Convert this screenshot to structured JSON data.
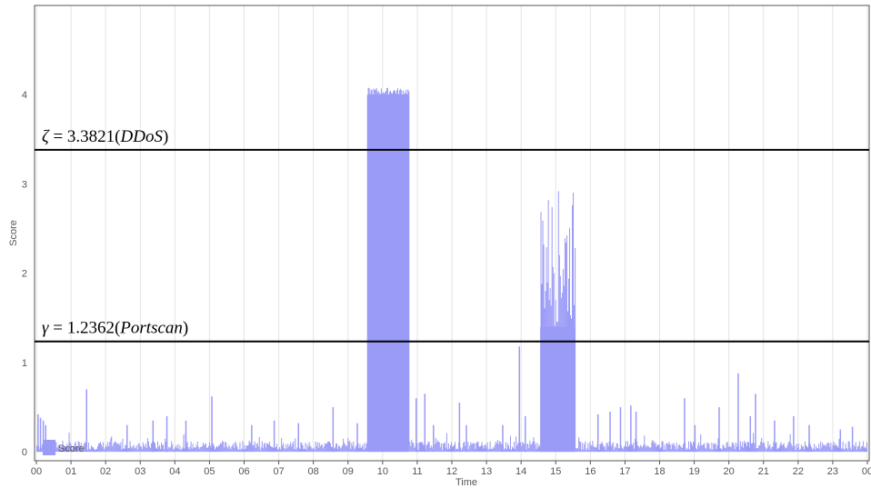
{
  "chart_data": {
    "type": "bar",
    "title": "",
    "xlabel": "Time",
    "ylabel": "Score",
    "xlim": [
      0,
      24
    ],
    "ylim": [
      -0.1,
      5
    ],
    "x_ticks": [
      "00",
      "01",
      "02",
      "03",
      "04",
      "05",
      "06",
      "07",
      "08",
      "09",
      "10",
      "11",
      "12",
      "13",
      "14",
      "15",
      "16",
      "17",
      "18",
      "19",
      "20",
      "21",
      "22",
      "23",
      "00"
    ],
    "y_ticks": [
      0,
      1,
      2,
      3,
      4
    ],
    "grid": "vertical",
    "series": [
      {
        "name": "Score",
        "color": "#9a9af7",
        "baseline_range": [
          0.02,
          0.12
        ],
        "segments": [
          {
            "start": 9.55,
            "end": 10.75,
            "min": 4.0,
            "max": 4.08
          },
          {
            "start": 14.55,
            "end": 15.55,
            "min": 1.4,
            "max": 2.95
          }
        ],
        "spikes": [
          {
            "x": 0.03,
            "value": 0.42
          },
          {
            "x": 0.1,
            "value": 0.38
          },
          {
            "x": 0.18,
            "value": 0.35
          },
          {
            "x": 0.25,
            "value": 0.3
          },
          {
            "x": 1.43,
            "value": 0.7
          },
          {
            "x": 2.6,
            "value": 0.3
          },
          {
            "x": 3.35,
            "value": 0.35
          },
          {
            "x": 3.75,
            "value": 0.4
          },
          {
            "x": 4.3,
            "value": 0.35
          },
          {
            "x": 5.05,
            "value": 0.62
          },
          {
            "x": 6.2,
            "value": 0.3
          },
          {
            "x": 6.85,
            "value": 0.35
          },
          {
            "x": 7.55,
            "value": 0.32
          },
          {
            "x": 8.55,
            "value": 0.5
          },
          {
            "x": 9.25,
            "value": 0.32
          },
          {
            "x": 10.95,
            "value": 0.6
          },
          {
            "x": 11.2,
            "value": 0.65
          },
          {
            "x": 11.45,
            "value": 0.3
          },
          {
            "x": 12.2,
            "value": 0.55
          },
          {
            "x": 12.4,
            "value": 0.3
          },
          {
            "x": 13.45,
            "value": 0.3
          },
          {
            "x": 13.93,
            "value": 1.18
          },
          {
            "x": 14.1,
            "value": 0.4
          },
          {
            "x": 16.2,
            "value": 0.42
          },
          {
            "x": 16.55,
            "value": 0.45
          },
          {
            "x": 16.85,
            "value": 0.5
          },
          {
            "x": 17.15,
            "value": 0.52
          },
          {
            "x": 17.3,
            "value": 0.45
          },
          {
            "x": 18.7,
            "value": 0.6
          },
          {
            "x": 19.0,
            "value": 0.3
          },
          {
            "x": 19.7,
            "value": 0.5
          },
          {
            "x": 20.25,
            "value": 0.88
          },
          {
            "x": 20.6,
            "value": 0.4
          },
          {
            "x": 20.75,
            "value": 0.65
          },
          {
            "x": 21.3,
            "value": 0.35
          },
          {
            "x": 21.85,
            "value": 0.4
          },
          {
            "x": 22.3,
            "value": 0.3
          },
          {
            "x": 23.2,
            "value": 0.25
          },
          {
            "x": 23.55,
            "value": 0.28
          }
        ]
      }
    ],
    "thresholds": [
      {
        "symbol": "ζ",
        "value": 3.3821,
        "value_text": "3.3821",
        "label": "DDoS"
      },
      {
        "symbol": "γ",
        "value": 1.2362,
        "value_text": "1.2362",
        "label": "Portscan"
      }
    ],
    "legend": {
      "position": "bottom-left",
      "entries": [
        "Score"
      ]
    }
  }
}
